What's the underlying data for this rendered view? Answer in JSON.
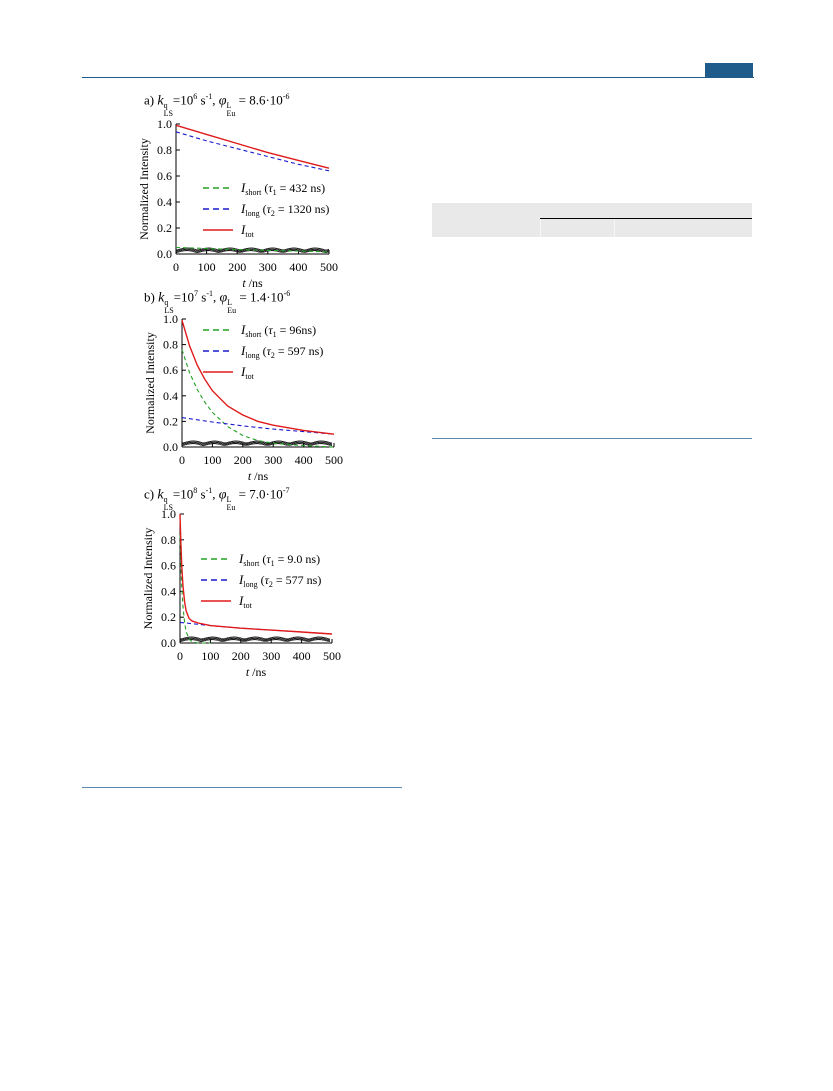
{
  "chart_data": [
    {
      "type": "line",
      "panel_letter": "a)",
      "k_value": "=10",
      "k_exp": "6",
      "phi_value": " = 8.6·10",
      "phi_exp": "-6",
      "ylabel": "Normalized Intensity",
      "xlabel": "t /ns",
      "xlim": [
        0,
        500
      ],
      "ylim": [
        0,
        1.0
      ],
      "x_ticks": [
        "0",
        "100",
        "200",
        "300",
        "400",
        "500"
      ],
      "y_ticks": [
        "0.0",
        "0.2",
        "0.4",
        "0.6",
        "0.8",
        "1.0"
      ],
      "legend_placement": "center-right",
      "series": [
        {
          "label_sub": "short",
          "label_tau": "1",
          "label_value": " = 432 ns)",
          "color": "#22a022",
          "dash": true,
          "x": [
            0,
            100,
            200,
            300,
            400,
            500
          ],
          "y": [
            0.05,
            0.042,
            0.034,
            0.028,
            0.023,
            0.016
          ]
        },
        {
          "label_sub": "long",
          "label_tau": "2",
          "label_value": " = 1320 ns)",
          "color": "#1a1acc",
          "dash": true,
          "x": [
            0,
            100,
            200,
            300,
            400,
            500
          ],
          "y": [
            0.94,
            0.87,
            0.81,
            0.75,
            0.69,
            0.64
          ]
        },
        {
          "label_sub": "tot",
          "color": "#e01a1a",
          "dash": false,
          "x": [
            0,
            100,
            200,
            300,
            400,
            500
          ],
          "y": [
            0.99,
            0.92,
            0.85,
            0.78,
            0.72,
            0.66
          ]
        }
      ]
    },
    {
      "type": "line",
      "panel_letter": "b)",
      "k_value": "=10",
      "k_exp": "7",
      "phi_value": " = 1.4·10",
      "phi_exp": "-6",
      "ylabel": "Normalized Intensity",
      "xlabel": "t /ns",
      "xlim": [
        0,
        500
      ],
      "ylim": [
        0,
        1.0
      ],
      "x_ticks": [
        "0",
        "100",
        "200",
        "300",
        "400",
        "500"
      ],
      "y_ticks": [
        "0.0",
        "0.2",
        "0.4",
        "0.6",
        "0.8",
        "1.0"
      ],
      "legend_placement": "top-right",
      "series": [
        {
          "label_sub": "short",
          "label_tau": "1",
          "label_value": " = 96ns)",
          "color": "#22a022",
          "dash": true,
          "x": [
            0,
            25,
            50,
            75,
            100,
            150,
            200,
            250,
            300,
            400,
            500
          ],
          "y": [
            0.76,
            0.58,
            0.45,
            0.35,
            0.27,
            0.16,
            0.09,
            0.05,
            0.03,
            0.01,
            0.0
          ]
        },
        {
          "label_sub": "long",
          "label_tau": "2",
          "label_value": " = 597 ns)",
          "color": "#1a1acc",
          "dash": true,
          "x": [
            0,
            100,
            200,
            300,
            400,
            500
          ],
          "y": [
            0.23,
            0.195,
            0.165,
            0.14,
            0.12,
            0.1
          ]
        },
        {
          "label_sub": "tot",
          "color": "#e01a1a",
          "dash": false,
          "x": [
            0,
            25,
            50,
            75,
            100,
            150,
            200,
            250,
            300,
            400,
            500
          ],
          "y": [
            0.99,
            0.79,
            0.64,
            0.53,
            0.44,
            0.32,
            0.25,
            0.2,
            0.17,
            0.13,
            0.1
          ]
        }
      ]
    },
    {
      "type": "line",
      "panel_letter": "c)",
      "k_value": "=10",
      "k_exp": "8",
      "phi_value": " = 7.0·10",
      "phi_exp": "-7",
      "ylabel": "Normalized Intensity",
      "xlabel": "t /ns",
      "xlim": [
        0,
        500
      ],
      "ylim": [
        0,
        1.0
      ],
      "x_ticks": [
        "0",
        "100",
        "200",
        "300",
        "400",
        "500"
      ],
      "y_ticks": [
        "0.0",
        "0.2",
        "0.4",
        "0.6",
        "0.8",
        "1.0"
      ],
      "legend_placement": "center-right",
      "series": [
        {
          "label_sub": "short",
          "label_tau": "1",
          "label_value": " = 9.0 ns)",
          "color": "#22a022",
          "dash": true,
          "x": [
            0,
            3,
            6,
            10,
            15,
            20,
            30,
            40,
            60,
            100
          ],
          "y": [
            0.84,
            0.61,
            0.43,
            0.28,
            0.16,
            0.09,
            0.03,
            0.01,
            0.0,
            0.0
          ]
        },
        {
          "label_sub": "long",
          "label_tau": "2",
          "label_value": " = 577 ns)",
          "color": "#1a1acc",
          "dash": true,
          "x": [
            0,
            100,
            200,
            300,
            400,
            500
          ],
          "y": [
            0.16,
            0.135,
            0.115,
            0.1,
            0.085,
            0.07
          ]
        },
        {
          "label_sub": "tot",
          "color": "#e01a1a",
          "dash": false,
          "x": [
            0,
            3,
            6,
            10,
            15,
            20,
            30,
            40,
            60,
            100,
            200,
            300,
            400,
            500
          ],
          "y": [
            1.0,
            0.77,
            0.59,
            0.44,
            0.32,
            0.25,
            0.19,
            0.17,
            0.155,
            0.135,
            0.115,
            0.1,
            0.085,
            0.07
          ]
        }
      ]
    }
  ],
  "label_parts": {
    "k": "k",
    "k_sup": "q",
    "k_sub": "LS",
    "unit": " s",
    "unit_exp": "-1",
    "sep": ", ",
    "phi": "φ",
    "phi_sup": "L",
    "phi_sub": "Eu",
    "legend_I": "I",
    "legend_tau": "τ",
    "paren_open": " ("
  }
}
